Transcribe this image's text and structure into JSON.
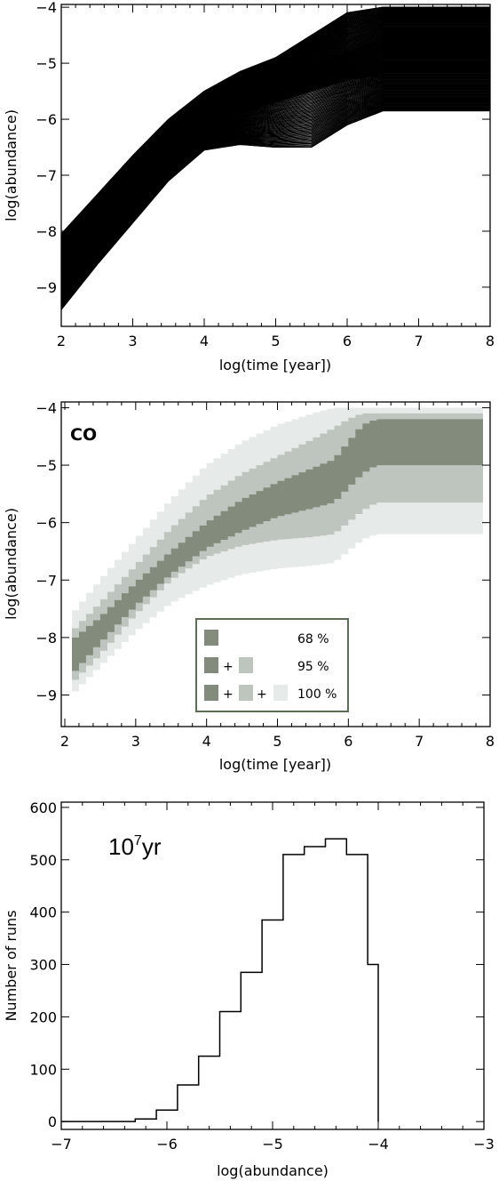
{
  "chart_data": [
    {
      "type": "line",
      "xlabel": "log(time [year])",
      "ylabel": "log(abundance)",
      "xlim": [
        2,
        8
      ],
      "ylim": [
        -9.7,
        -3.95
      ],
      "x_ticks": [
        "2",
        "3",
        "4",
        "5",
        "6",
        "7",
        "8"
      ],
      "y_ticks": [
        "−4",
        "−5",
        "−6",
        "−7",
        "−8",
        "−9"
      ],
      "series": [
        {
          "x": [
            2.0,
            2.5,
            3.0,
            3.5,
            4.0,
            4.5,
            5.0,
            5.5,
            6.0,
            6.5,
            7.0,
            8.0
          ],
          "y": [
            -8.05,
            -7.35,
            -6.65,
            -6.0,
            -5.5,
            -5.15,
            -4.9,
            -4.5,
            -4.1,
            -4.0,
            -4.0,
            -4.0
          ]
        },
        {
          "x": [
            2.0,
            2.5,
            3.0,
            3.5,
            4.0,
            4.5,
            5.0,
            5.5,
            6.0,
            6.5,
            7.0,
            8.0
          ],
          "y": [
            -8.5,
            -7.8,
            -7.1,
            -6.4,
            -5.9,
            -5.55,
            -5.3,
            -5.05,
            -4.8,
            -4.6,
            -4.6,
            -4.6
          ]
        },
        {
          "x": [
            2.0,
            2.5,
            3.0,
            3.5,
            4.0,
            4.5,
            5.0,
            5.5,
            6.0,
            6.5,
            7.0,
            8.0
          ],
          "y": [
            -8.9,
            -8.2,
            -7.5,
            -6.8,
            -6.2,
            -5.9,
            -5.7,
            -5.5,
            -5.3,
            -5.2,
            -5.2,
            -5.2
          ]
        },
        {
          "x": [
            2.0,
            2.5,
            3.0,
            3.5,
            4.0,
            4.5,
            5.0,
            5.5,
            6.0,
            6.5,
            7.0,
            8.0
          ],
          "y": [
            -9.4,
            -8.6,
            -7.85,
            -7.1,
            -6.55,
            -6.45,
            -6.5,
            -6.5,
            -6.1,
            -5.85,
            -5.85,
            -5.85
          ]
        }
      ]
    },
    {
      "type": "area",
      "xlabel": "log(time [year])",
      "ylabel": "log(abundance)",
      "xlim": [
        1.95,
        8
      ],
      "ylim": [
        -9.55,
        -3.9
      ],
      "x_ticks": [
        "2",
        "3",
        "4",
        "5",
        "6",
        "7",
        "8"
      ],
      "y_ticks": [
        "−4",
        "−5",
        "−6",
        "−7",
        "−8",
        "−9"
      ],
      "annotation": "CO",
      "colors": {
        "band68": "#838b7c",
        "band95": "#bec5bf",
        "band100": "#e6ebe9",
        "legend_border": "#5d6b57"
      },
      "legend": {
        "rows": [
          {
            "plus_1": "",
            "plus_2": "",
            "label": "68 %"
          },
          {
            "plus_1": "+",
            "plus_2": "",
            "label": "95 %"
          },
          {
            "plus_1": "+",
            "plus_2": "+",
            "label": "100 %"
          }
        ]
      },
      "bands": [
        {
          "name": "100 %",
          "x": [
            2.1,
            2.5,
            3.0,
            3.5,
            4.0,
            4.5,
            5.0,
            5.5,
            5.8,
            6.0,
            6.2,
            6.4,
            7.0,
            7.9
          ],
          "upper": [
            -7.6,
            -7.0,
            -6.3,
            -5.6,
            -5.0,
            -4.6,
            -4.3,
            -4.1,
            -4.0,
            -4.0,
            -4.0,
            -4.0,
            -4.0,
            -4.0
          ],
          "lower": [
            -9.0,
            -8.5,
            -7.9,
            -7.4,
            -7.1,
            -6.9,
            -6.8,
            -6.75,
            -6.7,
            -6.5,
            -6.3,
            -6.2,
            -6.2,
            -6.2
          ]
        },
        {
          "name": "95 %",
          "x": [
            2.1,
            2.5,
            3.0,
            3.5,
            4.0,
            4.5,
            5.0,
            5.5,
            5.8,
            6.0,
            6.2,
            6.4,
            7.0,
            7.9
          ],
          "upper": [
            -7.9,
            -7.4,
            -6.75,
            -6.1,
            -5.55,
            -5.15,
            -4.85,
            -4.55,
            -4.35,
            -4.2,
            -4.1,
            -4.1,
            -4.1,
            -4.1
          ],
          "lower": [
            -8.8,
            -8.3,
            -7.6,
            -7.0,
            -6.6,
            -6.4,
            -6.3,
            -6.25,
            -6.2,
            -6.0,
            -5.8,
            -5.65,
            -5.65,
            -5.65
          ]
        },
        {
          "name": "68 %",
          "x": [
            2.1,
            2.5,
            3.0,
            3.5,
            4.0,
            4.5,
            5.0,
            5.5,
            5.8,
            6.0,
            6.2,
            6.4,
            7.0,
            7.9
          ],
          "upper": [
            -8.05,
            -7.65,
            -7.05,
            -6.5,
            -6.0,
            -5.6,
            -5.3,
            -5.05,
            -4.9,
            -4.6,
            -4.3,
            -4.2,
            -4.2,
            -4.2
          ],
          "lower": [
            -8.65,
            -8.1,
            -7.45,
            -6.9,
            -6.45,
            -6.15,
            -5.9,
            -5.75,
            -5.65,
            -5.4,
            -5.15,
            -5.0,
            -5.0,
            -5.0
          ]
        }
      ]
    },
    {
      "type": "bar",
      "xlabel": "log(abundance)",
      "ylabel": "Number of runs",
      "xlim": [
        -7,
        -3
      ],
      "ylim": [
        -15,
        610
      ],
      "x_ticks": [
        "−7",
        "−6",
        "−5",
        "−4",
        "−3"
      ],
      "y_ticks": [
        "0",
        "100",
        "200",
        "300",
        "400",
        "500",
        "600"
      ],
      "annotation_base": "10",
      "annotation_sup": "7",
      "annotation_unit": "yr",
      "bin_edges": [
        -6.3,
        -6.1,
        -5.9,
        -5.7,
        -5.5,
        -5.3,
        -5.1,
        -4.9,
        -4.7,
        -4.5,
        -4.3,
        -4.1,
        -4.0
      ],
      "counts": [
        5,
        22,
        70,
        125,
        210,
        285,
        385,
        510,
        525,
        540,
        510,
        300
      ]
    }
  ]
}
